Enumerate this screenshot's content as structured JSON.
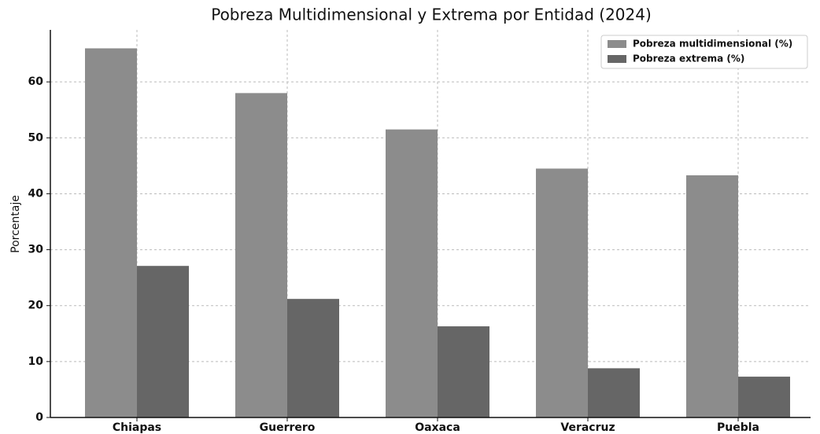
{
  "chart_data": {
    "type": "bar",
    "title": "Pobreza Multidimensional y Extrema por Entidad (2024)",
    "y_label": "Porcentaje",
    "categories": [
      "Chiapas",
      "Guerrero",
      "Oaxaca",
      "Veracruz",
      "Puebla"
    ],
    "series": [
      {
        "name": "Pobreza multidimensional (%)",
        "color": "#8c8c8c",
        "values": [
          66.0,
          58.0,
          51.5,
          44.5,
          43.3
        ]
      },
      {
        "name": "Pobreza extrema (%)",
        "color": "#666666",
        "values": [
          27.1,
          21.2,
          16.3,
          8.8,
          7.3
        ]
      }
    ],
    "ylim": [
      0,
      69.3
    ],
    "yticks": [
      0,
      10,
      20,
      30,
      40,
      50,
      60
    ],
    "grid": true,
    "legend": "upper right"
  }
}
